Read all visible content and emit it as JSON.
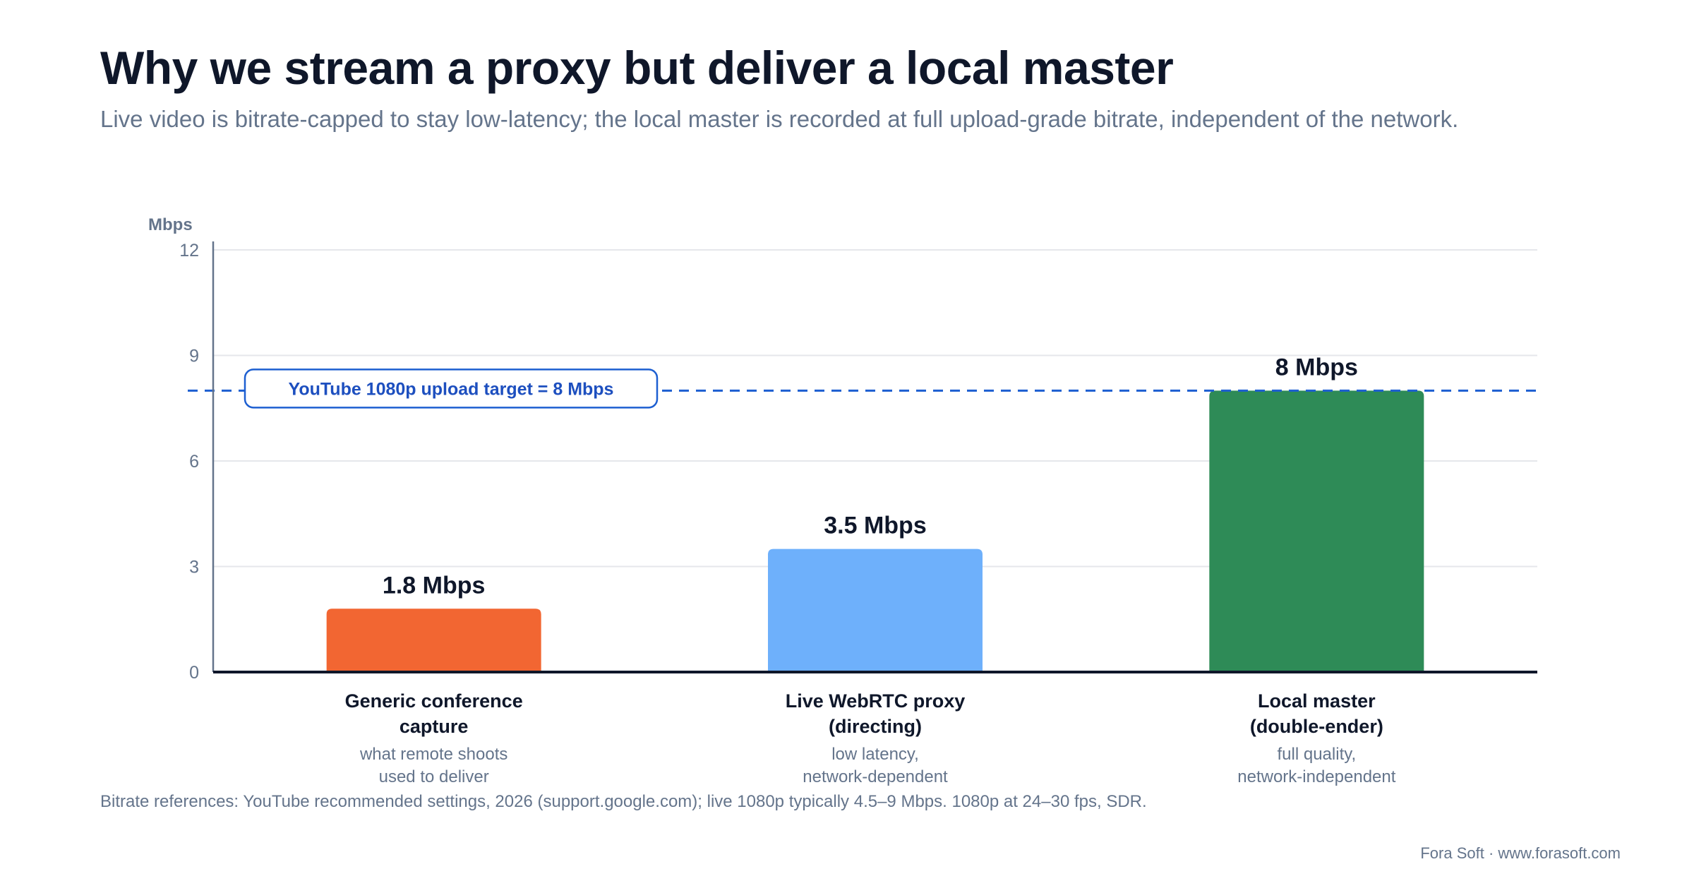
{
  "header": {
    "title": "Why we stream a proxy but deliver a local master",
    "subtitle": "Live video is bitrate-capped to stay low-latency; the local master is recorded at full upload-grade bitrate, independent of the network."
  },
  "chart_data": {
    "type": "bar",
    "ylabel": "Mbps",
    "ylim": [
      0,
      12
    ],
    "yticks": [
      0,
      3,
      6,
      9,
      12
    ],
    "grid": true,
    "categories": [
      {
        "label": [
          "Generic conference",
          "capture"
        ],
        "sublabel": [
          "what remote shoots",
          "used to deliver"
        ]
      },
      {
        "label": [
          "Live WebRTC proxy",
          "(directing)"
        ],
        "sublabel": [
          "low latency,",
          "network-dependent"
        ]
      },
      {
        "label": [
          "Local master",
          "(double-ender)"
        ],
        "sublabel": [
          "full quality,",
          "network-independent"
        ]
      }
    ],
    "values": [
      1.8,
      3.5,
      8
    ],
    "value_labels": [
      "1.8 Mbps",
      "3.5 Mbps",
      "8 Mbps"
    ],
    "colors": [
      "#f26632",
      "#6eb0fb",
      "#2e8b57"
    ],
    "reference_line": {
      "value": 8,
      "label": "YouTube 1080p upload target = 8 Mbps",
      "color": "#1d5fd1"
    }
  },
  "footnote": "Bitrate references: YouTube recommended settings, 2026 (support.google.com); live 1080p typically 4.5–9 Mbps. 1080p at 24–30 fps, SDR.",
  "credit": "Fora Soft · www.forasoft.com"
}
